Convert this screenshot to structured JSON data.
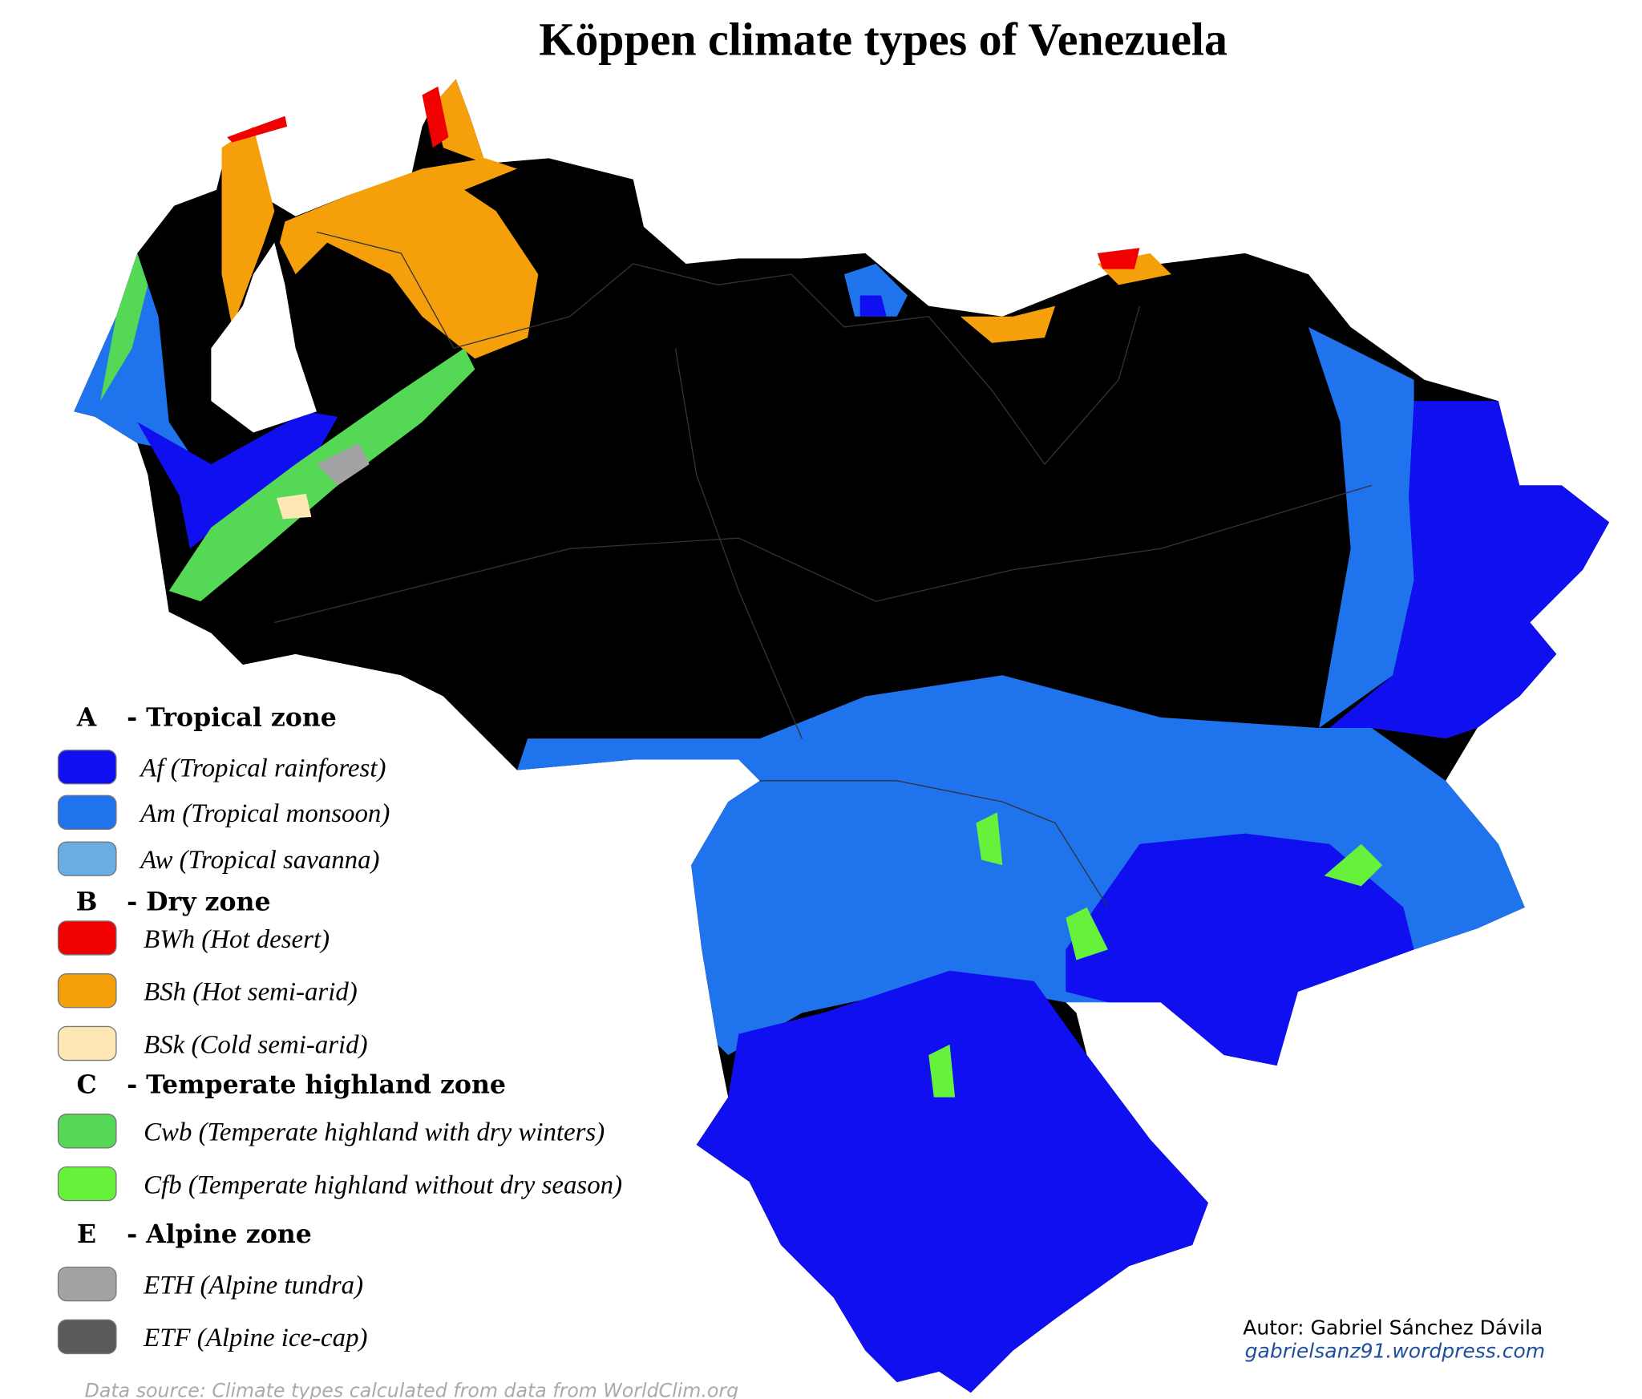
{
  "title": "Köppen climate types of Venezuela",
  "legend": [
    {
      "letter": "A",
      "name": "- Tropical zone",
      "items": [
        {
          "label": "Af (Tropical rainforest)",
          "color": "#0f0ff0"
        },
        {
          "label": "Am (Tropical monsoon)",
          "color": "#1f74ee"
        },
        {
          "label": "Aw (Tropical savanna)",
          "color": "#6aade3"
        }
      ]
    },
    {
      "letter": "B",
      "name": "- Dry zone",
      "items": [
        {
          "label": "BWh (Hot desert)",
          "color": "#f00000"
        },
        {
          "label": "BSh (Hot semi-arid)",
          "color": "#f5a00a"
        },
        {
          "label": "BSk (Cold semi-arid)",
          "color": "#fde7b4"
        }
      ]
    },
    {
      "letter": "C",
      "name": "- Temperate highland zone",
      "items": [
        {
          "label": "Cwb (Temperate highland with dry winters)",
          "color": "#55d855"
        },
        {
          "label": "Cfb (Temperate highland without dry season)",
          "color": "#66f23a"
        }
      ]
    },
    {
      "letter": "E",
      "name": "- Alpine zone",
      "items": [
        {
          "label": "ETH (Alpine tundra)",
          "color": "#a3a3a3"
        },
        {
          "label": "ETF (Alpine ice-cap)",
          "color": "#5a5a5a"
        }
      ]
    }
  ],
  "author": "Autor: Gabriel Sánchez Dávila",
  "website": "gabrielsanz91.wordpress.com",
  "source": "Data source: Climate types calculated from data from WorldClim.org"
}
